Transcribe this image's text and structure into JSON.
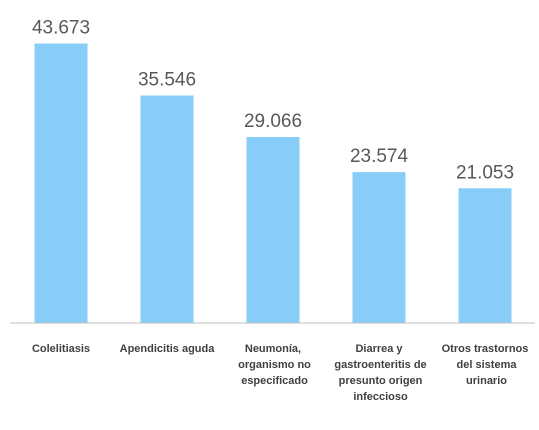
{
  "chart_data": {
    "type": "bar",
    "categories": [
      "Colelitiasis",
      "Apendicitis aguda",
      "Neumonía, organismo no especificado",
      "Diarrea y gastroenteritis de presunto origen infeccioso",
      "Otros trastornos del sistema urinario"
    ],
    "values": [
      43673,
      35546,
      29066,
      23574,
      21053
    ],
    "value_labels": [
      "43.673",
      "35.546",
      "29.066",
      "23.574",
      "21.053"
    ],
    "color": "#87cdf7",
    "ylim": [
      0,
      50000
    ]
  }
}
